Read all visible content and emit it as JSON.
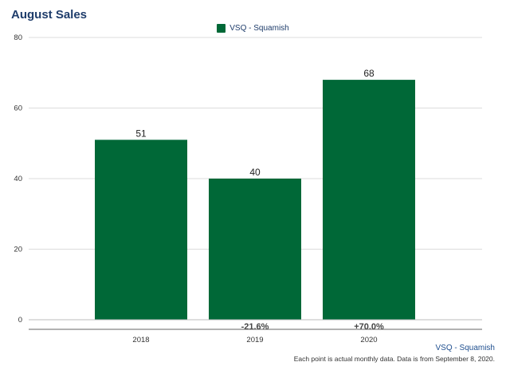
{
  "chart_data": {
    "type": "bar",
    "title": "August Sales",
    "categories": [
      "2018",
      "2019",
      "2020"
    ],
    "series": [
      {
        "name": "VSQ - Squamish",
        "values": [
          51,
          40,
          68
        ]
      }
    ],
    "value_labels": [
      "51",
      "40",
      "68"
    ],
    "change_labels": [
      "",
      "-21.6%",
      "+70.0%"
    ],
    "yticks": [
      "0",
      "20",
      "40",
      "60",
      "80"
    ],
    "ylim": [
      0,
      80
    ],
    "grid": true,
    "legend": "top-center"
  },
  "colors": {
    "bar": "#006837",
    "title": "#1f3d6b"
  },
  "footer": {
    "series_label": "VSQ - Squamish",
    "note": "Each point is actual monthly data. Data is from September 8, 2020."
  }
}
